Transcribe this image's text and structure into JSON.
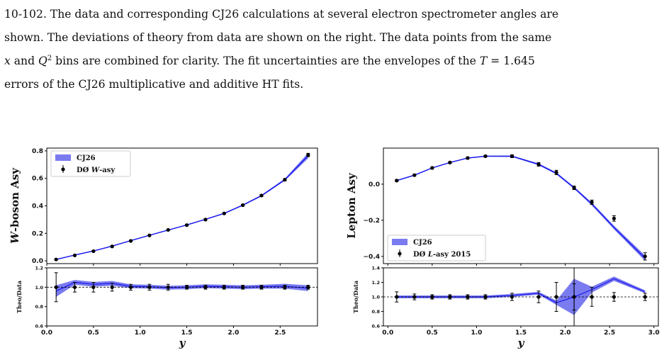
{
  "caption": {
    "line1": "10-102. The data and corresponding CJ26 calculations at several electron spectrometer angles are",
    "line2": "shown. The deviations of theory from data are shown on the right. The data points from the same",
    "line3_a": "x",
    "line3_b": " and ",
    "line3_c": "Q",
    "line3_sup": "2",
    "line3_d": " bins are combined for clarity. The fit uncertainties are the envelopes of the ",
    "line3_e": "T",
    "line3_f": " = 1.645",
    "line4": "errors of the CJ26 multiplicative and additive HT fits."
  },
  "colors": {
    "band": "#7b7bf0",
    "line": "#1a1aee",
    "data": "#000000"
  },
  "chart_data": [
    {
      "type": "line",
      "ylabel": "W-boson Asy",
      "xlabel": "y",
      "xlim": [
        0.0,
        2.9
      ],
      "ylim": [
        -0.02,
        0.82
      ],
      "xticks": [
        "0.0",
        "0.5",
        "1.0",
        "1.5",
        "2.0",
        "2.5"
      ],
      "yticks": [
        "0.0",
        "0.2",
        "0.4",
        "0.6",
        "0.8"
      ],
      "legend_position": "top-left",
      "legend": {
        "theory": "CJ26",
        "data_prefix": "DØ ",
        "data_italic": "W",
        "data_suffix": "-asy"
      },
      "x": [
        0.1,
        0.3,
        0.5,
        0.7,
        0.9,
        1.1,
        1.3,
        1.5,
        1.7,
        1.9,
        2.1,
        2.3,
        2.55,
        2.8
      ],
      "data": [
        0.01,
        0.04,
        0.07,
        0.105,
        0.145,
        0.185,
        0.225,
        0.26,
        0.3,
        0.345,
        0.405,
        0.475,
        0.59,
        0.77
      ],
      "data_err": [
        0.004,
        0.004,
        0.004,
        0.004,
        0.004,
        0.004,
        0.004,
        0.005,
        0.005,
        0.005,
        0.006,
        0.007,
        0.008,
        0.012
      ],
      "theory": [
        0.01,
        0.042,
        0.072,
        0.107,
        0.147,
        0.186,
        0.224,
        0.261,
        0.302,
        0.345,
        0.405,
        0.474,
        0.59,
        0.765
      ],
      "theory_band": [
        0.003,
        0.003,
        0.003,
        0.003,
        0.003,
        0.003,
        0.003,
        0.004,
        0.004,
        0.004,
        0.005,
        0.006,
        0.008,
        0.02
      ],
      "ratio": {
        "ylabel": "Theo/Data",
        "ylim": [
          0.6,
          1.2
        ],
        "yticks": [
          "0.6",
          "0.8",
          "1.0",
          "1.2"
        ],
        "values": [
          0.96,
          1.05,
          1.03,
          1.04,
          1.01,
          1.005,
          0.995,
          1.0,
          1.01,
          1.005,
          1.0,
          1.005,
          1.01,
          0.99
        ],
        "band": [
          0.06,
          0.025,
          0.025,
          0.025,
          0.02,
          0.02,
          0.02,
          0.02,
          0.02,
          0.02,
          0.02,
          0.02,
          0.025,
          0.03
        ],
        "data_err": [
          0.15,
          0.05,
          0.05,
          0.04,
          0.03,
          0.03,
          0.03,
          0.02,
          0.02,
          0.02,
          0.02,
          0.02,
          0.02,
          0.02
        ]
      }
    },
    {
      "type": "line",
      "ylabel": "Lepton Asy",
      "xlabel": "y",
      "xlim": [
        -0.05,
        3.05
      ],
      "ylim": [
        -0.44,
        0.2
      ],
      "xticks": [
        "0.0",
        "0.5",
        "1.0",
        "1.5",
        "2.0",
        "2.5",
        "3.0"
      ],
      "yticks": [
        "-0.4",
        "-0.2",
        "0.0"
      ],
      "legend_position": "bottom-left",
      "legend": {
        "theory": "CJ26",
        "data_prefix": "DØ ",
        "data_italic": "L",
        "data_suffix": "-asy 2015"
      },
      "x": [
        0.1,
        0.3,
        0.5,
        0.7,
        0.9,
        1.1,
        1.4,
        1.7,
        1.9,
        2.1,
        2.3,
        2.55,
        2.9
      ],
      "data": [
        0.02,
        0.05,
        0.09,
        0.12,
        0.145,
        0.155,
        0.155,
        0.11,
        0.065,
        -0.02,
        -0.1,
        -0.19,
        -0.4
      ],
      "data_err": [
        0.005,
        0.005,
        0.005,
        0.005,
        0.005,
        0.005,
        0.008,
        0.01,
        0.012,
        0.01,
        0.012,
        0.015,
        0.02
      ],
      "theory": [
        0.02,
        0.05,
        0.09,
        0.12,
        0.145,
        0.155,
        0.155,
        0.11,
        0.06,
        -0.02,
        -0.11,
        -0.24,
        -0.41
      ],
      "theory_band": [
        0.003,
        0.003,
        0.003,
        0.003,
        0.003,
        0.003,
        0.004,
        0.005,
        0.006,
        0.006,
        0.008,
        0.01,
        0.015
      ],
      "ratio": {
        "ylabel": "Theo/Data",
        "ylim": [
          0.6,
          1.4
        ],
        "yticks": [
          "0.6",
          "0.8",
          "1.0",
          "1.2",
          "1.4"
        ],
        "values": [
          1.0,
          1.0,
          1.0,
          1.0,
          1.0,
          1.0,
          1.02,
          1.05,
          0.92,
          1.0,
          1.1,
          1.25,
          1.07
        ],
        "band": [
          0.02,
          0.02,
          0.02,
          0.02,
          0.02,
          0.02,
          0.02,
          0.02,
          0.03,
          0.25,
          0.04,
          0.03,
          0.02
        ],
        "data_err": [
          0.07,
          0.04,
          0.03,
          0.03,
          0.03,
          0.03,
          0.05,
          0.08,
          0.2,
          0.18,
          0.13,
          0.06,
          0.05
        ],
        "vline_x": 2.1
      }
    }
  ]
}
